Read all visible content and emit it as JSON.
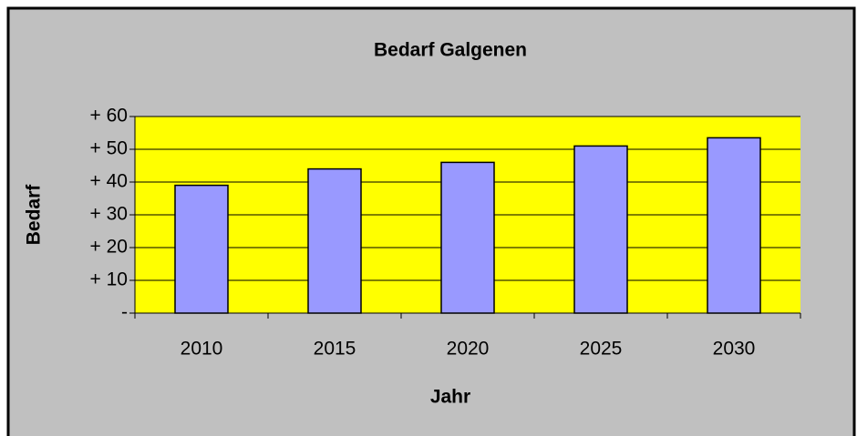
{
  "chart_data": {
    "type": "bar",
    "title": "Bedarf Galgenen",
    "x_label": "Jahr",
    "y_label": "Bedarf",
    "categories": [
      "2010",
      "2015",
      "2020",
      "2025",
      "2030"
    ],
    "values": [
      39,
      44,
      46,
      51,
      53.5
    ],
    "color": "#9999ff",
    "plot_background": "#ffff00",
    "background": "#c0c0c0",
    "ylim": [
      0,
      60
    ],
    "yticks": [
      {
        "value": 0,
        "label": "-"
      },
      {
        "value": 10,
        "label": "+ 10"
      },
      {
        "value": 20,
        "label": "+ 20"
      },
      {
        "value": 30,
        "label": "+ 30"
      },
      {
        "value": 40,
        "label": "+ 40"
      },
      {
        "value": 50,
        "label": "+ 50"
      },
      {
        "value": 60,
        "label": "+ 60"
      }
    ],
    "grid": true
  }
}
